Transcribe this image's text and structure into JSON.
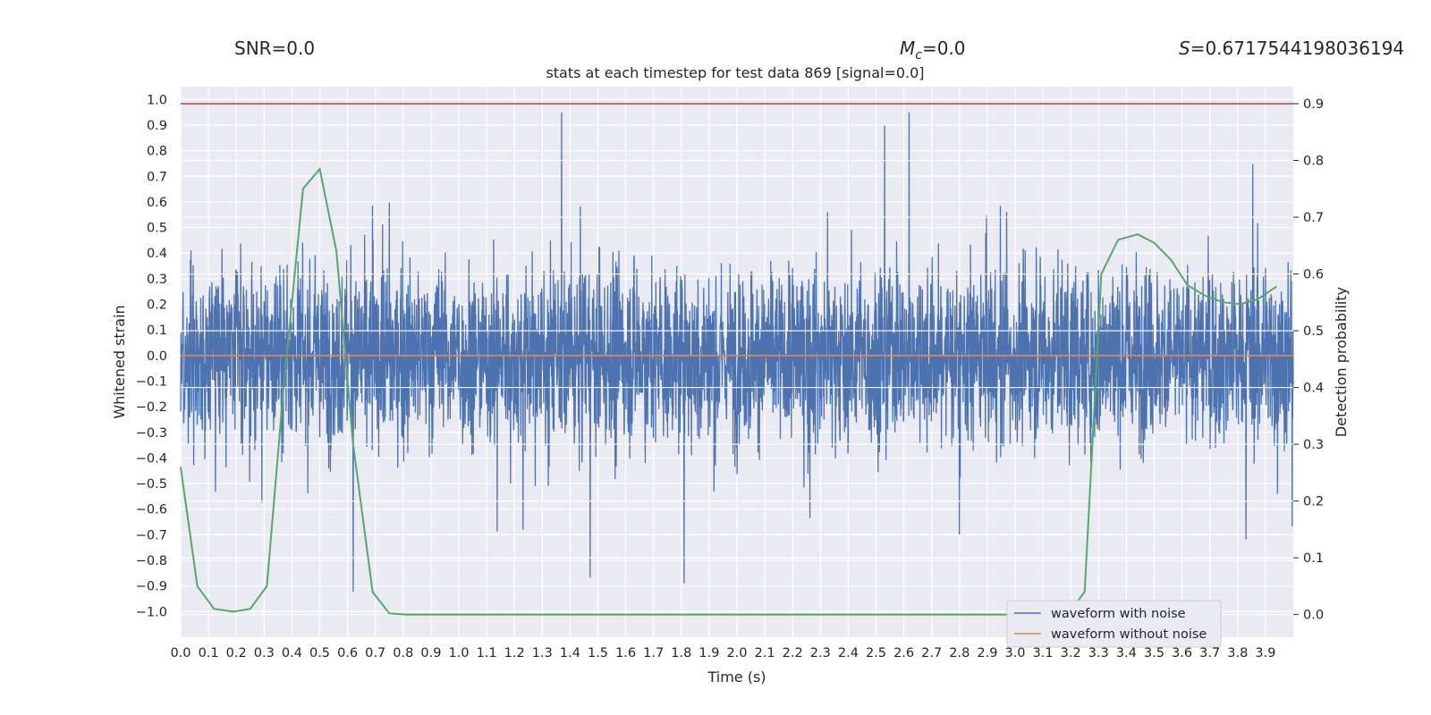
{
  "header": {
    "snr_text": "SNR=0.0",
    "mc_symbol": "M",
    "mc_sub": "c",
    "mc_value": "=0.0",
    "s_symbol": "S",
    "s_value": "=0.6717544198036194"
  },
  "chart_data": {
    "type": "line",
    "title": "stats at each timestep for test data 869 [signal=0.0]",
    "xlabel": "Time (s)",
    "ylabel": "Whitened strain",
    "y2label": "Detection probability",
    "xlim": [
      0.0,
      4.0
    ],
    "ylim": [
      -1.1,
      1.05
    ],
    "y2lim": [
      -0.04,
      0.93
    ],
    "xticks": [
      "0.0",
      "0.1",
      "0.2",
      "0.3",
      "0.4",
      "0.5",
      "0.6",
      "0.7",
      "0.8",
      "0.9",
      "1.0",
      "1.1",
      "1.2",
      "1.3",
      "1.4",
      "1.5",
      "1.6",
      "1.7",
      "1.8",
      "1.9",
      "2.0",
      "2.1",
      "2.2",
      "2.3",
      "2.4",
      "2.5",
      "2.6",
      "2.7",
      "2.8",
      "2.9",
      "3.0",
      "3.1",
      "3.2",
      "3.3",
      "3.4",
      "3.5",
      "3.6",
      "3.7",
      "3.8",
      "3.9"
    ],
    "yticks": [
      "1.0",
      "0.9",
      "0.8",
      "0.7",
      "0.6",
      "0.5",
      "0.4",
      "0.3",
      "0.2",
      "0.1",
      "0.0",
      "−0.1",
      "−0.2",
      "−0.3",
      "−0.4",
      "−0.5",
      "−0.6",
      "−0.7",
      "−0.8",
      "−0.9",
      "−1.0"
    ],
    "y2ticks": [
      "0.9",
      "0.8",
      "0.7",
      "0.6",
      "0.5",
      "0.4",
      "0.3",
      "0.2",
      "0.1",
      "0.0"
    ],
    "threshold": 0.9,
    "series": [
      {
        "name": "waveform with noise",
        "color": "#4c72b0",
        "x_range": [
          0.0,
          4.0
        ],
        "note_values": "dense whitened noise, typical amplitude about ±0.3, peaks near 0.95 and -0.97"
      },
      {
        "name": "waveform without noise",
        "color": "#dd8452",
        "x": [
          0.0,
          4.0
        ],
        "y": [
          0.0,
          0.0
        ]
      },
      {
        "color": "#55a868",
        "axis": "right",
        "x": [
          0.0,
          0.06,
          0.12,
          0.19,
          0.25,
          0.31,
          0.37,
          0.44,
          0.5,
          0.56,
          0.62,
          0.69,
          0.75,
          0.81,
          3.19,
          3.25,
          3.31,
          3.37,
          3.44,
          3.5,
          3.56,
          3.62,
          3.69,
          3.75,
          3.81,
          3.87,
          3.94
        ],
        "y": [
          0.26,
          0.05,
          0.01,
          0.005,
          0.01,
          0.05,
          0.4,
          0.75,
          0.785,
          0.64,
          0.3,
          0.04,
          0.002,
          0.0,
          0.0,
          0.04,
          0.6,
          0.66,
          0.67,
          0.655,
          0.625,
          0.58,
          0.56,
          0.55,
          0.547,
          0.555,
          0.578
        ]
      }
    ],
    "legend": {
      "position": "lower-right",
      "entries": [
        "waveform with noise",
        "waveform without noise"
      ]
    },
    "grid": true
  }
}
